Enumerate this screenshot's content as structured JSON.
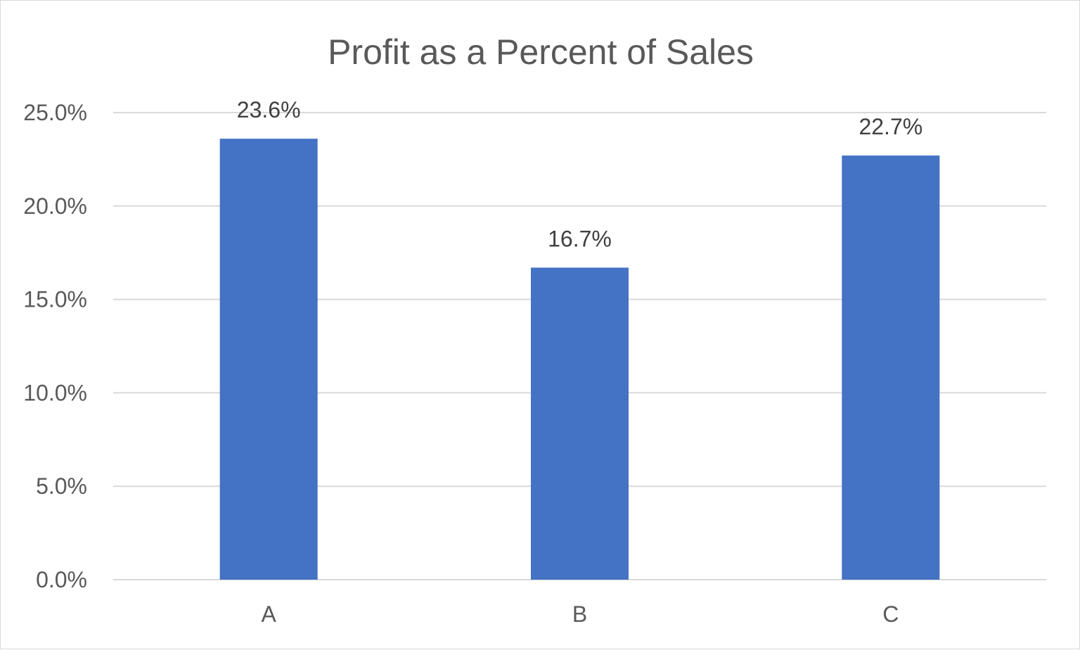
{
  "chart_data": {
    "type": "bar",
    "title": "Profit as a Percent of Sales",
    "xlabel": "",
    "ylabel": "",
    "categories": [
      "A",
      "B",
      "C"
    ],
    "values": [
      23.6,
      16.7,
      22.7
    ],
    "data_labels": [
      "23.6%",
      "16.7%",
      "22.7%"
    ],
    "ylim": [
      0,
      25
    ],
    "yticks": [
      0,
      5,
      10,
      15,
      20,
      25
    ],
    "ytick_labels": [
      "0.0%",
      "5.0%",
      "10.0%",
      "15.0%",
      "20.0%",
      "25.0%"
    ],
    "grid": true,
    "legend": "none",
    "colors": {
      "bar": "#4472C4",
      "grid": "#d9d9d9",
      "text": "#595959",
      "data_label": "#404040",
      "border": "#d9d9d9"
    }
  }
}
